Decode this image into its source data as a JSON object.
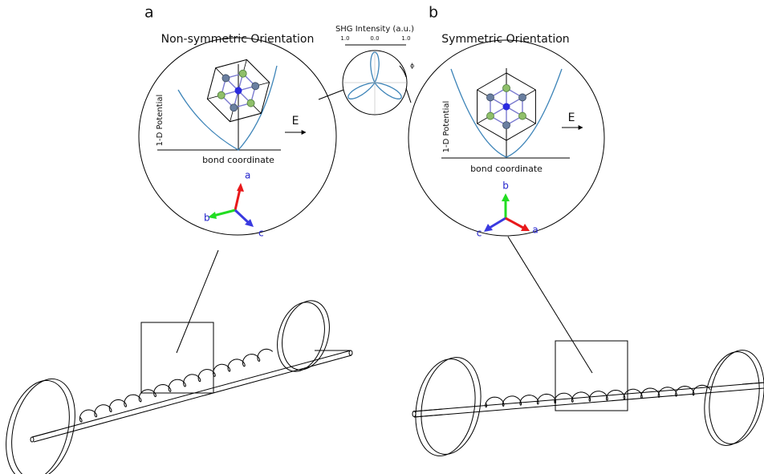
{
  "panels": [
    {
      "label": "a",
      "title": "Non-symmetric Orientation",
      "y_axis": "1-D Potential",
      "x_axis": "bond coordinate",
      "field": "E",
      "axes": [
        "a",
        "b",
        "c"
      ]
    },
    {
      "label": "b",
      "title": "Symmetric Orientation",
      "y_axis": "1-D Potential",
      "x_axis": "bond coordinate",
      "field": "E",
      "axes": [
        "b",
        "c",
        "a"
      ]
    }
  ],
  "inset": {
    "title": "SHG Intensity (a.u.)",
    "scale": [
      "1.0",
      "0.0",
      "1.0"
    ],
    "angle": "ϕ"
  }
}
